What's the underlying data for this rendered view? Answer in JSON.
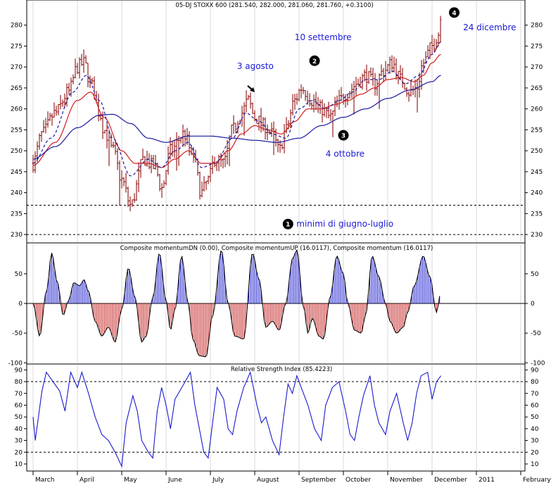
{
  "chart_data": [
    {
      "type": "candlestick",
      "title": "05-DJ STOXX 600 (281.540, 282.000, 281.060, 281.760, +0.3100)",
      "ylim": [
        228,
        286
      ],
      "yticks": [
        230,
        235,
        240,
        245,
        250,
        255,
        260,
        265,
        270,
        275,
        280
      ],
      "dashed_levels": [
        237,
        230
      ],
      "x_months": [
        "March",
        "April",
        "May",
        "June",
        "July",
        "August",
        "September",
        "October",
        "November",
        "December",
        "2011",
        "February"
      ],
      "months_data_units": [
        0,
        1,
        2,
        3,
        4,
        5,
        6,
        7,
        8,
        9,
        10,
        11
      ],
      "price_anchors": [
        [
          0.0,
          247
        ],
        [
          0.2,
          254
        ],
        [
          0.5,
          259
        ],
        [
          0.8,
          264
        ],
        [
          1.0,
          270
        ],
        [
          1.15,
          271
        ],
        [
          1.3,
          266
        ],
        [
          1.5,
          259
        ],
        [
          1.6,
          255
        ],
        [
          1.8,
          250
        ],
        [
          2.0,
          243
        ],
        [
          2.2,
          237
        ],
        [
          2.5,
          248
        ],
        [
          2.75,
          246
        ],
        [
          2.9,
          241
        ],
        [
          3.1,
          250
        ],
        [
          3.4,
          254
        ],
        [
          3.6,
          249
        ],
        [
          3.8,
          240
        ],
        [
          3.95,
          243
        ],
        [
          4.1,
          248
        ],
        [
          4.3,
          247
        ],
        [
          4.5,
          255
        ],
        [
          4.7,
          259
        ],
        [
          4.85,
          262
        ],
        [
          5.0,
          258
        ],
        [
          5.2,
          256
        ],
        [
          5.4,
          254
        ],
        [
          5.55,
          250
        ],
        [
          5.7,
          255
        ],
        [
          5.9,
          262
        ],
        [
          6.05,
          265
        ],
        [
          6.3,
          262
        ],
        [
          6.5,
          260
        ],
        [
          6.7,
          258
        ],
        [
          6.9,
          262
        ],
        [
          7.1,
          264
        ],
        [
          7.3,
          266
        ],
        [
          7.5,
          268
        ],
        [
          7.7,
          266
        ],
        [
          7.9,
          269
        ],
        [
          8.1,
          271
        ],
        [
          8.3,
          267
        ],
        [
          8.5,
          264
        ],
        [
          8.65,
          265
        ],
        [
          8.8,
          271
        ],
        [
          9.0,
          275
        ],
        [
          9.15,
          278
        ],
        [
          9.2,
          282
        ]
      ],
      "moving_averages": [
        {
          "name": "",
          "color": "#d41a1a",
          "anchors": [
            [
              0.0,
              246.5
            ],
            [
              0.5,
              252
            ],
            [
              1.0,
              262
            ],
            [
              1.3,
              264
            ],
            [
              1.6,
              258
            ],
            [
              2.0,
              250
            ],
            [
              2.3,
              247
            ],
            [
              2.6,
              247
            ],
            [
              2.9,
              246
            ],
            [
              3.2,
              248
            ],
            [
              3.5,
              250
            ],
            [
              3.8,
              247
            ],
            [
              4.1,
              247
            ],
            [
              4.4,
              250
            ],
            [
              4.7,
              254
            ],
            [
              5.0,
              256
            ],
            [
              5.3,
              255
            ],
            [
              5.6,
              254
            ],
            [
              5.9,
              257
            ],
            [
              6.2,
              260
            ],
            [
              6.5,
              260
            ],
            [
              6.8,
              261
            ],
            [
              7.1,
              262
            ],
            [
              7.4,
              263.5
            ],
            [
              7.7,
              265
            ],
            [
              8.0,
              267
            ],
            [
              8.3,
              267.5
            ],
            [
              8.6,
              266.5
            ],
            [
              8.8,
              268
            ],
            [
              9.0,
              271
            ],
            [
              9.2,
              273
            ]
          ]
        },
        {
          "name": "",
          "color": "#1a1a9e",
          "anchors": [
            [
              0.0,
              248
            ],
            [
              0.5,
              251
            ],
            [
              1.0,
              255.5
            ],
            [
              1.5,
              258.5
            ],
            [
              1.8,
              258.7
            ],
            [
              2.2,
              256.5
            ],
            [
              2.6,
              253
            ],
            [
              3.0,
              252
            ],
            [
              3.5,
              253.5
            ],
            [
              4.0,
              253.5
            ],
            [
              4.5,
              253
            ],
            [
              5.0,
              252.5
            ],
            [
              5.5,
              252
            ],
            [
              6.0,
              253
            ],
            [
              6.5,
              256
            ],
            [
              7.0,
              258
            ],
            [
              7.5,
              260
            ],
            [
              8.0,
              262.5
            ],
            [
              8.5,
              264.5
            ],
            [
              9.0,
              266.5
            ],
            [
              9.2,
              268
            ]
          ]
        },
        {
          "name": "",
          "color": "#1a1a9e",
          "style": "dashed",
          "anchors": [
            [
              0.0,
              247
            ],
            [
              0.4,
              253
            ],
            [
              0.9,
              264
            ],
            [
              1.2,
              268
            ],
            [
              1.5,
              262
            ],
            [
              1.8,
              253
            ],
            [
              2.2,
              244
            ],
            [
              2.6,
              248
            ],
            [
              2.9,
              246
            ],
            [
              3.2,
              250
            ],
            [
              3.5,
              252
            ],
            [
              3.8,
              246
            ],
            [
              4.1,
              247
            ],
            [
              4.5,
              253
            ],
            [
              4.8,
              259
            ],
            [
              5.1,
              257
            ],
            [
              5.4,
              254
            ],
            [
              5.7,
              253
            ],
            [
              6.0,
              260
            ],
            [
              6.3,
              262
            ],
            [
              6.6,
              260
            ],
            [
              6.9,
              262
            ],
            [
              7.2,
              264
            ],
            [
              7.5,
              267
            ],
            [
              7.8,
              267
            ],
            [
              8.1,
              269
            ],
            [
              8.4,
              266
            ],
            [
              8.7,
              268
            ],
            [
              9.0,
              273
            ],
            [
              9.2,
              276
            ]
          ]
        }
      ],
      "annotations": [
        {
          "marker": "1",
          "text": "minimi di giugno-luglio",
          "x": 5.75,
          "y": 232.5
        },
        {
          "marker": "2",
          "text": "10 settembre",
          "x": 6.35,
          "y": 271.5,
          "label_x": 5.9,
          "label_y": 276.4
        },
        {
          "marker": "3",
          "text": "4 ottobre",
          "x": 7.0,
          "y": 253.7,
          "label_x": 6.6,
          "label_y": 248.6
        },
        {
          "marker": "4",
          "text": "24 dicembre",
          "x": 9.5,
          "y": 283,
          "label_x": 9.7,
          "label_y": 278.8
        },
        {
          "marker": "",
          "text": "3 agosto",
          "x": 4.6,
          "y": 269.5,
          "arrow_to": [
            5.0,
            264
          ]
        }
      ]
    },
    {
      "type": "histogram",
      "title": "Composite momentumDN (0.00), Composite momentumUP (16.0117), Composite momentum (16.0117)",
      "ylim": [
        -102,
        102
      ],
      "yticks": [
        50,
        0,
        -50,
        -100
      ],
      "colors": {
        "up": "#1a1acd",
        "down": "#c21a1a",
        "envelope": "#000000"
      },
      "anchors": [
        [
          0.0,
          0
        ],
        [
          0.15,
          -55
        ],
        [
          0.3,
          20
        ],
        [
          0.42,
          85
        ],
        [
          0.55,
          35
        ],
        [
          0.68,
          -20
        ],
        [
          0.8,
          5
        ],
        [
          0.92,
          35
        ],
        [
          1.05,
          30
        ],
        [
          1.15,
          40
        ],
        [
          1.25,
          20
        ],
        [
          1.4,
          -30
        ],
        [
          1.55,
          -55
        ],
        [
          1.7,
          -40
        ],
        [
          1.85,
          -65
        ],
        [
          2.0,
          -10
        ],
        [
          2.15,
          60
        ],
        [
          2.3,
          10
        ],
        [
          2.45,
          -65
        ],
        [
          2.55,
          -55
        ],
        [
          2.7,
          10
        ],
        [
          2.85,
          85
        ],
        [
          3.0,
          5
        ],
        [
          3.1,
          -45
        ],
        [
          3.2,
          -10
        ],
        [
          3.35,
          80
        ],
        [
          3.5,
          0
        ],
        [
          3.6,
          -60
        ],
        [
          3.75,
          -88
        ],
        [
          3.9,
          -90
        ],
        [
          4.05,
          -20
        ],
        [
          4.25,
          90
        ],
        [
          4.4,
          0
        ],
        [
          4.55,
          -55
        ],
        [
          4.75,
          -60
        ],
        [
          4.95,
          85
        ],
        [
          5.1,
          40
        ],
        [
          5.25,
          -40
        ],
        [
          5.4,
          -30
        ],
        [
          5.55,
          -45
        ],
        [
          5.7,
          0
        ],
        [
          5.85,
          75
        ],
        [
          5.95,
          90
        ],
        [
          6.1,
          -5
        ],
        [
          6.2,
          -50
        ],
        [
          6.3,
          -25
        ],
        [
          6.45,
          -55
        ],
        [
          6.55,
          -60
        ],
        [
          6.7,
          10
        ],
        [
          6.85,
          80
        ],
        [
          7.0,
          50
        ],
        [
          7.1,
          0
        ],
        [
          7.25,
          -45
        ],
        [
          7.4,
          -50
        ],
        [
          7.5,
          -20
        ],
        [
          7.65,
          80
        ],
        [
          7.8,
          45
        ],
        [
          7.95,
          0
        ],
        [
          8.05,
          -30
        ],
        [
          8.2,
          -50
        ],
        [
          8.35,
          -40
        ],
        [
          8.45,
          -15
        ],
        [
          8.6,
          30
        ],
        [
          8.8,
          80
        ],
        [
          8.95,
          45
        ],
        [
          9.1,
          -15
        ],
        [
          9.2,
          20
        ]
      ]
    },
    {
      "type": "line",
      "title": "Relative Strength Index (85.4223)",
      "ylim": [
        4,
        95
      ],
      "yticks": [
        90,
        80,
        70,
        60,
        50,
        40,
        30,
        20,
        10
      ],
      "dashed_levels": [
        80,
        20
      ],
      "series": [
        {
          "name": "",
          "color": "#1a1acd",
          "anchors": [
            [
              0.0,
              50
            ],
            [
              0.05,
              30
            ],
            [
              0.2,
              72
            ],
            [
              0.3,
              88
            ],
            [
              0.45,
              80
            ],
            [
              0.6,
              72
            ],
            [
              0.72,
              55
            ],
            [
              0.85,
              88
            ],
            [
              1.0,
              75
            ],
            [
              1.1,
              88
            ],
            [
              1.25,
              70
            ],
            [
              1.4,
              50
            ],
            [
              1.55,
              35
            ],
            [
              1.7,
              30
            ],
            [
              1.85,
              20
            ],
            [
              2.0,
              8
            ],
            [
              2.1,
              45
            ],
            [
              2.25,
              68
            ],
            [
              2.35,
              55
            ],
            [
              2.45,
              30
            ],
            [
              2.6,
              20
            ],
            [
              2.7,
              15
            ],
            [
              2.8,
              55
            ],
            [
              2.9,
              75
            ],
            [
              3.0,
              60
            ],
            [
              3.1,
              40
            ],
            [
              3.2,
              65
            ],
            [
              3.4,
              78
            ],
            [
              3.55,
              88
            ],
            [
              3.65,
              60
            ],
            [
              3.75,
              40
            ],
            [
              3.85,
              20
            ],
            [
              3.95,
              15
            ],
            [
              4.05,
              45
            ],
            [
              4.15,
              75
            ],
            [
              4.3,
              65
            ],
            [
              4.4,
              40
            ],
            [
              4.5,
              35
            ],
            [
              4.6,
              55
            ],
            [
              4.75,
              75
            ],
            [
              4.9,
              88
            ],
            [
              5.05,
              60
            ],
            [
              5.15,
              45
            ],
            [
              5.25,
              50
            ],
            [
              5.4,
              30
            ],
            [
              5.55,
              18
            ],
            [
              5.65,
              50
            ],
            [
              5.75,
              78
            ],
            [
              5.85,
              70
            ],
            [
              5.95,
              85
            ],
            [
              6.05,
              75
            ],
            [
              6.2,
              60
            ],
            [
              6.35,
              40
            ],
            [
              6.5,
              30
            ],
            [
              6.6,
              60
            ],
            [
              6.75,
              75
            ],
            [
              6.9,
              80
            ],
            [
              7.05,
              55
            ],
            [
              7.15,
              35
            ],
            [
              7.25,
              30
            ],
            [
              7.35,
              50
            ],
            [
              7.45,
              68
            ],
            [
              7.6,
              85
            ],
            [
              7.7,
              60
            ],
            [
              7.8,
              45
            ],
            [
              7.95,
              35
            ],
            [
              8.05,
              55
            ],
            [
              8.2,
              70
            ],
            [
              8.35,
              45
            ],
            [
              8.45,
              30
            ],
            [
              8.55,
              45
            ],
            [
              8.65,
              70
            ],
            [
              8.75,
              85
            ],
            [
              8.9,
              88
            ],
            [
              9.0,
              65
            ],
            [
              9.1,
              80
            ],
            [
              9.2,
              85
            ]
          ]
        }
      ]
    }
  ]
}
